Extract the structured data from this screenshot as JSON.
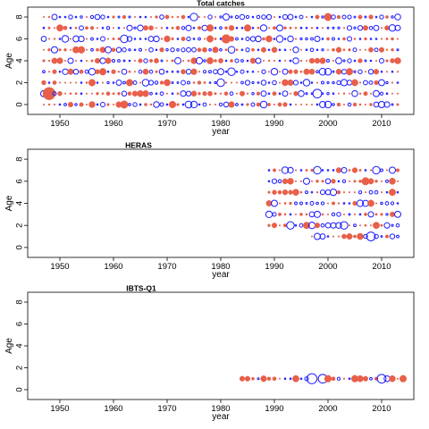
{
  "colors": {
    "positive": "#1a1aff",
    "negative": "#e8604a",
    "axis": "#000000"
  },
  "chart_data": [
    {
      "type": "scatter",
      "title": "Total catches",
      "xlabel": "year",
      "ylabel": "Age",
      "xlim": [
        1944,
        2016
      ],
      "ylim": [
        -0.9,
        8.9
      ],
      "xticks": [
        1950,
        1960,
        1970,
        1980,
        1990,
        2000,
        2010
      ],
      "yticks": [
        0,
        2,
        4,
        6,
        8
      ],
      "x_range": [
        1947,
        2013
      ],
      "ages": [
        0,
        1,
        2,
        3,
        4,
        5,
        6,
        7,
        8
      ],
      "encoding": "bubble size = residual magnitude; open blue = positive, filled orange = negative",
      "highlights": [
        {
          "x": 1948,
          "y": 1,
          "size": 1.0,
          "sign": "neg"
        },
        {
          "x": 1981,
          "y": 6,
          "size": 0.7,
          "sign": "neg"
        },
        {
          "x": 2000,
          "y": 8,
          "size": 0.6,
          "sign": "neg"
        },
        {
          "x": 1962,
          "y": 0,
          "size": 0.6,
          "sign": "neg"
        },
        {
          "x": 1980,
          "y": 2,
          "size": 0.6,
          "sign": "pos"
        },
        {
          "x": 1998,
          "y": 1,
          "size": 0.7,
          "sign": "pos"
        },
        {
          "x": 1962,
          "y": 6,
          "size": 0.6,
          "sign": "pos"
        },
        {
          "x": 1975,
          "y": 8,
          "size": 0.6,
          "sign": "pos"
        },
        {
          "x": 1982,
          "y": 3,
          "size": 0.6,
          "sign": "pos"
        }
      ]
    },
    {
      "type": "scatter",
      "title": "HERAS",
      "xlabel": "year",
      "ylabel": "Age",
      "xlim": [
        1944,
        2016
      ],
      "ylim": [
        -0.9,
        8.9
      ],
      "xticks": [
        1950,
        1960,
        1970,
        1980,
        1990,
        2000,
        2010
      ],
      "yticks": [
        0,
        2,
        4,
        6,
        8
      ],
      "x_range": [
        1989,
        2013
      ],
      "ages": [
        1,
        2,
        3,
        4,
        5,
        6,
        7
      ],
      "start_age_1": 1997,
      "encoding": "bubble size = residual magnitude; open blue = positive, filled orange = negative",
      "highlights": [
        {
          "x": 1998,
          "y": 7,
          "size": 0.6,
          "sign": "pos"
        },
        {
          "x": 2009,
          "y": 7,
          "size": 0.6,
          "sign": "pos"
        },
        {
          "x": 2007,
          "y": 6,
          "size": 0.6,
          "sign": "neg"
        },
        {
          "x": 2003,
          "y": 2,
          "size": 0.6,
          "sign": "pos"
        },
        {
          "x": 2008,
          "y": 1,
          "size": 0.7,
          "sign": "pos"
        },
        {
          "x": 1993,
          "y": 2,
          "size": 0.6,
          "sign": "pos"
        }
      ]
    },
    {
      "type": "scatter",
      "title": "IBTS-Q1",
      "xlabel": "year",
      "ylabel": "Age",
      "xlim": [
        1944,
        2016
      ],
      "ylim": [
        -0.9,
        8.9
      ],
      "xticks": [
        1950,
        1960,
        1970,
        1980,
        1990,
        2000,
        2010
      ],
      "yticks": [
        0,
        2,
        4,
        6,
        8
      ],
      "x_range": [
        1984,
        2014
      ],
      "ages": [
        1
      ],
      "encoding": "bubble size = residual magnitude; open blue = positive, filled orange = negative",
      "highlights": [
        {
          "x": 1997,
          "y": 1,
          "size": 0.8,
          "sign": "pos"
        },
        {
          "x": 1999,
          "y": 1,
          "size": 0.7,
          "sign": "pos"
        },
        {
          "x": 2010,
          "y": 1,
          "size": 0.7,
          "sign": "pos"
        },
        {
          "x": 1984,
          "y": 1,
          "size": 0.4,
          "sign": "neg"
        },
        {
          "x": 2006,
          "y": 1,
          "size": 0.5,
          "sign": "neg"
        }
      ]
    }
  ]
}
